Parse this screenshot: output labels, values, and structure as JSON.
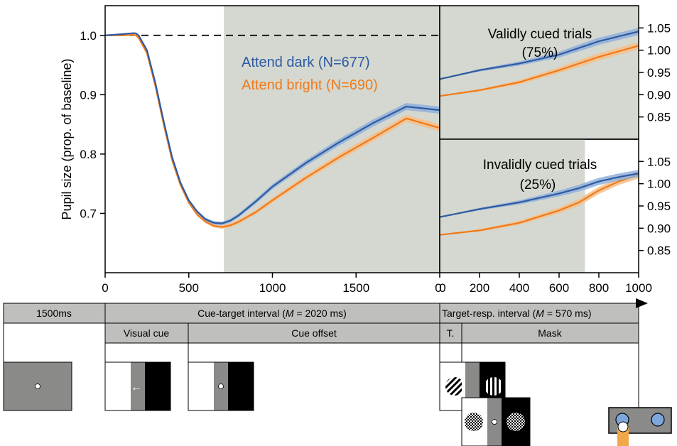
{
  "colors": {
    "attend_dark": "#2f5aa0",
    "attend_dark_band": "#8fb0dc",
    "attend_bright": "#ef7a1a",
    "attend_bright_band": "#f6c08a",
    "shading": "#d4d8d0",
    "panel_grey": "#bfc0bd",
    "stim_grey": "#8a8b88"
  },
  "chart_data": [
    {
      "type": "line",
      "panel": "main",
      "ylabel": "Pupil size (prop. of baseline)",
      "xlim": [
        0,
        2000
      ],
      "ylim": [
        0.6,
        1.05
      ],
      "x_ticks": [
        "0",
        "500",
        "1000",
        "1500",
        "0"
      ],
      "y_ticks": [
        "0.7",
        "0.8",
        "0.9",
        "1.0"
      ],
      "baseline": 1.0,
      "shaded_from": 710,
      "series": [
        {
          "name": "Attend dark (N=677)",
          "x": [
            0,
            100,
            180,
            200,
            250,
            300,
            350,
            400,
            450,
            500,
            550,
            600,
            650,
            700,
            750,
            800,
            900,
            1000,
            1200,
            1400,
            1600,
            1800,
            2000
          ],
          "values": [
            1.0,
            1.002,
            1.004,
            1.0,
            0.975,
            0.92,
            0.855,
            0.795,
            0.752,
            0.722,
            0.703,
            0.69,
            0.684,
            0.683,
            0.688,
            0.697,
            0.72,
            0.745,
            0.785,
            0.82,
            0.852,
            0.88,
            0.874
          ]
        },
        {
          "name": "Attend bright (N=690)",
          "x": [
            0,
            100,
            180,
            200,
            250,
            300,
            350,
            400,
            450,
            500,
            550,
            600,
            650,
            700,
            750,
            800,
            900,
            1000,
            1200,
            1400,
            1600,
            1800,
            2000
          ],
          "values": [
            1.0,
            1.0,
            1.001,
            0.996,
            0.97,
            0.915,
            0.85,
            0.79,
            0.748,
            0.718,
            0.698,
            0.686,
            0.679,
            0.677,
            0.68,
            0.686,
            0.702,
            0.722,
            0.76,
            0.795,
            0.827,
            0.86,
            0.844
          ]
        }
      ]
    },
    {
      "type": "line",
      "panel": "validly_cued",
      "title": "Validly cued trials",
      "subtitle": "(75%)",
      "ylim": [
        0.8,
        1.1
      ],
      "y_ticks": [
        "0.85",
        "0.90",
        "0.95",
        "1.00",
        "1.05"
      ],
      "series": [
        {
          "name": "Attend dark",
          "x": [
            0,
            200,
            400,
            600,
            700,
            800,
            1000
          ],
          "values": [
            0.935,
            0.955,
            0.97,
            0.99,
            1.005,
            1.02,
            1.042
          ]
        },
        {
          "name": "Attend bright",
          "x": [
            0,
            200,
            400,
            600,
            700,
            800,
            1000
          ],
          "values": [
            0.897,
            0.91,
            0.928,
            0.955,
            0.97,
            0.985,
            1.01
          ]
        }
      ]
    },
    {
      "type": "line",
      "panel": "invalidly_cued",
      "title": "Invalidly cued trials",
      "subtitle": "(25%)",
      "xlim": [
        0,
        1000
      ],
      "x_ticks": [
        "0",
        "200",
        "400",
        "600",
        "800",
        "1000"
      ],
      "ylim": [
        0.8,
        1.1
      ],
      "y_ticks": [
        "0.85",
        "0.90",
        "0.95",
        "1.00",
        "1.05"
      ],
      "shaded_to": 730,
      "series": [
        {
          "name": "Attend dark",
          "x": [
            0,
            200,
            400,
            600,
            700,
            800,
            900,
            1000
          ],
          "values": [
            0.925,
            0.943,
            0.958,
            0.978,
            0.99,
            1.005,
            1.015,
            1.023
          ]
        },
        {
          "name": "Attend bright",
          "x": [
            0,
            200,
            400,
            600,
            700,
            800,
            900,
            1000
          ],
          "values": [
            0.885,
            0.895,
            0.912,
            0.94,
            0.958,
            0.985,
            1.005,
            1.02
          ]
        }
      ]
    }
  ],
  "legend": {
    "dark": "Attend dark (N=677)",
    "bright": "Attend bright (N=690)"
  },
  "timeline": {
    "baseline": "1500ms",
    "cue_target": {
      "prefix": "Cue-target interval (",
      "m": "M",
      "suffix": " = 2020 ms)"
    },
    "target_resp": {
      "prefix": "Target-resp. interval (",
      "m": "M",
      "suffix": " = 570 ms)"
    },
    "visual_cue": "Visual cue",
    "cue_offset": "Cue offset",
    "target": "T.",
    "mask": "Mask",
    "arrow_symbol": "←"
  }
}
